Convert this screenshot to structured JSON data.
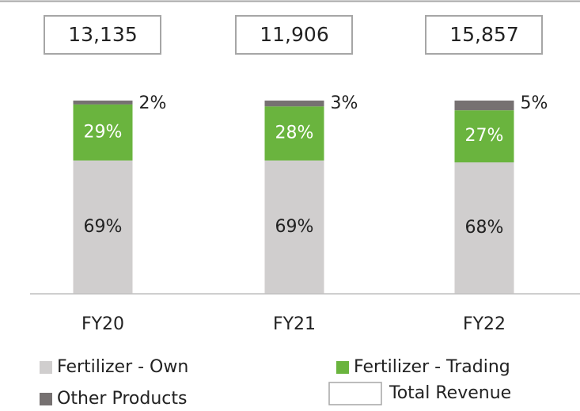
{
  "chart_data": {
    "type": "stacked_bar",
    "categories": [
      "FY20",
      "FY21",
      "FY22"
    ],
    "ylim": [
      0,
      100
    ],
    "series": [
      {
        "name": "Fertilizer - Own",
        "color": "#d0cece",
        "values": [
          69,
          69,
          68
        ],
        "value_labels": [
          "69%",
          "69%",
          "68%"
        ]
      },
      {
        "name": "Fertilizer - Trading",
        "color": "#6ab43e",
        "values": [
          29,
          28,
          27
        ],
        "value_labels": [
          "29%",
          "28%",
          "27%"
        ]
      },
      {
        "name": "Other Products",
        "color": "#767171",
        "values": [
          2,
          3,
          5
        ],
        "value_labels": [
          "2%",
          "3%",
          "5%"
        ]
      }
    ],
    "totals": {
      "name": "Total Revenue",
      "values": [
        13135,
        11906,
        15857
      ],
      "value_labels": [
        "13,135",
        "11,906",
        "15,857"
      ]
    }
  }
}
